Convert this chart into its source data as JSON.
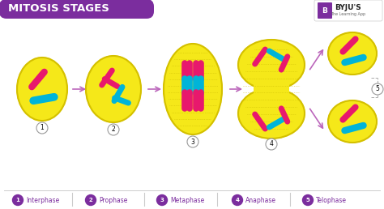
{
  "title": "MITOSIS STAGES",
  "title_bg": "#7b2d9e",
  "title_color": "#ffffff",
  "bg_color": "#ffffff",
  "yellow_cell": "#f5e819",
  "yellow_outline": "#d4c000",
  "pink_chr": "#e8186d",
  "blue_chr": "#00b4d8",
  "arrow_color": "#bb66bb",
  "purple": "#7b2d9e",
  "legend_labels": [
    "Interphase",
    "Prophase",
    "Metaphase",
    "Anaphase",
    "Telophase"
  ],
  "spindle_color": "#c8b800",
  "num_circle_color": "#ffffff",
  "num_circle_edge": "#aaaaaa"
}
